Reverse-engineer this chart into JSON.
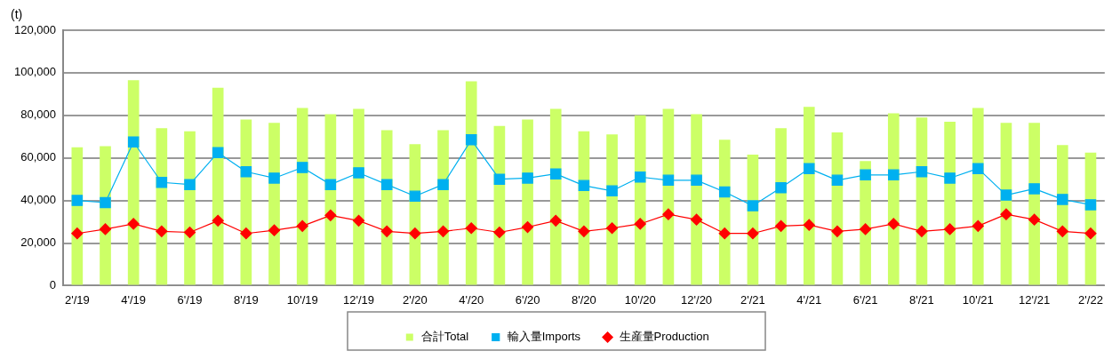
{
  "chart_data": {
    "type": "bar",
    "ylabel": "(t)",
    "categories": [
      "2'/19",
      null,
      "4'/19",
      null,
      "6'/19",
      null,
      "8'/19",
      null,
      "10'/19",
      null,
      "12'/19",
      null,
      "2'/20",
      null,
      "4'/20",
      null,
      "6'/20",
      null,
      "8'/20",
      null,
      "10'/20",
      null,
      "12'/20",
      null,
      "2'/21",
      null,
      "4'/21",
      null,
      "6'/21",
      null,
      "8'/21",
      null,
      "10'/21",
      null,
      "12'/21",
      null,
      "2'/22"
    ],
    "series": [
      {
        "name": "合計Total",
        "color": "#ccff66",
        "values": [
          65000,
          65500,
          96500,
          74000,
          72500,
          93000,
          78000,
          76500,
          83500,
          80500,
          83000,
          73000,
          66500,
          73000,
          96000,
          75000,
          78000,
          83000,
          72500,
          71000,
          80000,
          83000,
          80500,
          68500,
          61500,
          74000,
          84000,
          72000,
          58500,
          81000,
          79000,
          77000,
          83500,
          76500,
          76500,
          66000,
          62500
        ]
      },
      {
        "name": "輸入量Imports",
        "type": "line",
        "marker": "square",
        "color": "#00b0f0",
        "values": [
          40000,
          39000,
          67500,
          48500,
          47500,
          62500,
          53500,
          50500,
          55500,
          47500,
          53000,
          47500,
          42000,
          47500,
          68500,
          50000,
          50500,
          52500,
          47000,
          44500,
          51000,
          49500,
          49500,
          44000,
          37500,
          46000,
          55000,
          49500,
          52000,
          52000,
          53500,
          50500,
          55000,
          42500,
          45500,
          40500,
          38000
        ]
      },
      {
        "name": "生産量Production",
        "type": "line",
        "marker": "diamond",
        "color": "#ff0000",
        "values": [
          24500,
          26500,
          29000,
          25500,
          25000,
          30500,
          24500,
          26000,
          28000,
          33000,
          30500,
          25500,
          24500,
          25500,
          27000,
          25000,
          27500,
          30500,
          25500,
          27000,
          29000,
          33500,
          31000,
          24500,
          24500,
          28000,
          28500,
          25500,
          26500,
          29000,
          25500,
          26500,
          28000,
          33500,
          31000,
          25500,
          24500
        ]
      }
    ],
    "ylim": [
      0,
      120000
    ],
    "yticks": [
      0,
      {
        "value": 20000,
        "label": "20,000"
      },
      {
        "value": 40000,
        "label": "40,000"
      },
      {
        "value": 60000,
        "label": "60,000"
      },
      {
        "value": 80000,
        "label": "80,000"
      },
      {
        "value": 100000,
        "label": "100,000"
      },
      {
        "value": 120000,
        "label": "120,000"
      }
    ],
    "grid": "y",
    "legend": "bottom"
  }
}
